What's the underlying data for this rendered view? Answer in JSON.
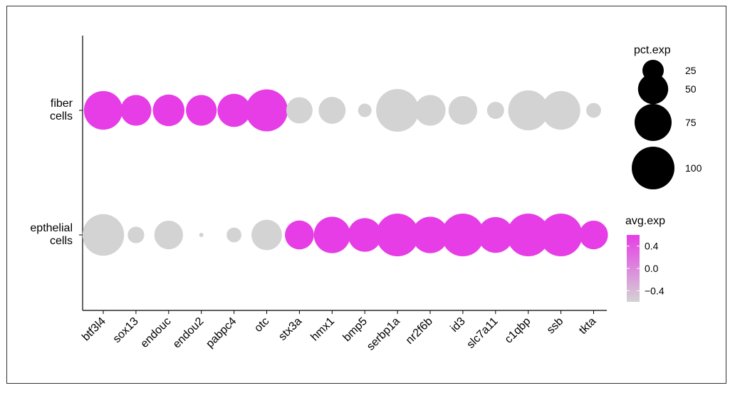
{
  "chart_data": {
    "type": "dotplot",
    "genes": [
      "btf3l4",
      "sox13",
      "endouc",
      "endou2",
      "pabpc4",
      "otc",
      "stx3a",
      "hmx1",
      "bmp5",
      "serbp1a",
      "nr2f6b",
      "id3",
      "slc7a11",
      "c1qbp",
      "ssb",
      "tkta"
    ],
    "groups": [
      {
        "label_lines": [
          "fiber",
          "cells"
        ],
        "id": "fiber"
      },
      {
        "label_lines": [
          "epthelial",
          "cells"
        ],
        "id": "epthelial"
      }
    ],
    "pct_exp": {
      "fiber": [
        82,
        52,
        55,
        52,
        60,
        97,
        38,
        40,
        10,
        100,
        52,
        45,
        16,
        88,
        82,
        12
      ],
      "epthelial": [
        95,
        15,
        45,
        1,
        12,
        51,
        46,
        73,
        62,
        100,
        73,
        100,
        70,
        100,
        100,
        45
      ]
    },
    "avg_exp": {
      "fiber": [
        0.6,
        0.6,
        0.6,
        0.6,
        0.6,
        0.6,
        -0.6,
        -0.6,
        -0.6,
        -0.6,
        -0.6,
        -0.6,
        -0.6,
        -0.6,
        -0.6,
        -0.6
      ],
      "epthelial": [
        -0.6,
        -0.6,
        -0.6,
        -0.6,
        -0.6,
        -0.6,
        0.6,
        0.6,
        0.6,
        0.6,
        0.6,
        0.6,
        0.6,
        0.6,
        0.6,
        0.6
      ]
    },
    "color_low": "#d3d3d3",
    "color_high": "#e63de6",
    "size_legend": {
      "title": "pct.exp",
      "breaks": [
        25,
        50,
        75,
        100
      ],
      "labels": [
        "25",
        "50",
        "75",
        "100"
      ]
    },
    "color_legend": {
      "title": "avg.exp",
      "range": [
        -0.6,
        0.6
      ],
      "breaks": [
        0.4,
        0.0,
        -0.4
      ],
      "labels": [
        "0.4",
        "0.0",
        "−0.4"
      ]
    },
    "legend_position": "right"
  }
}
